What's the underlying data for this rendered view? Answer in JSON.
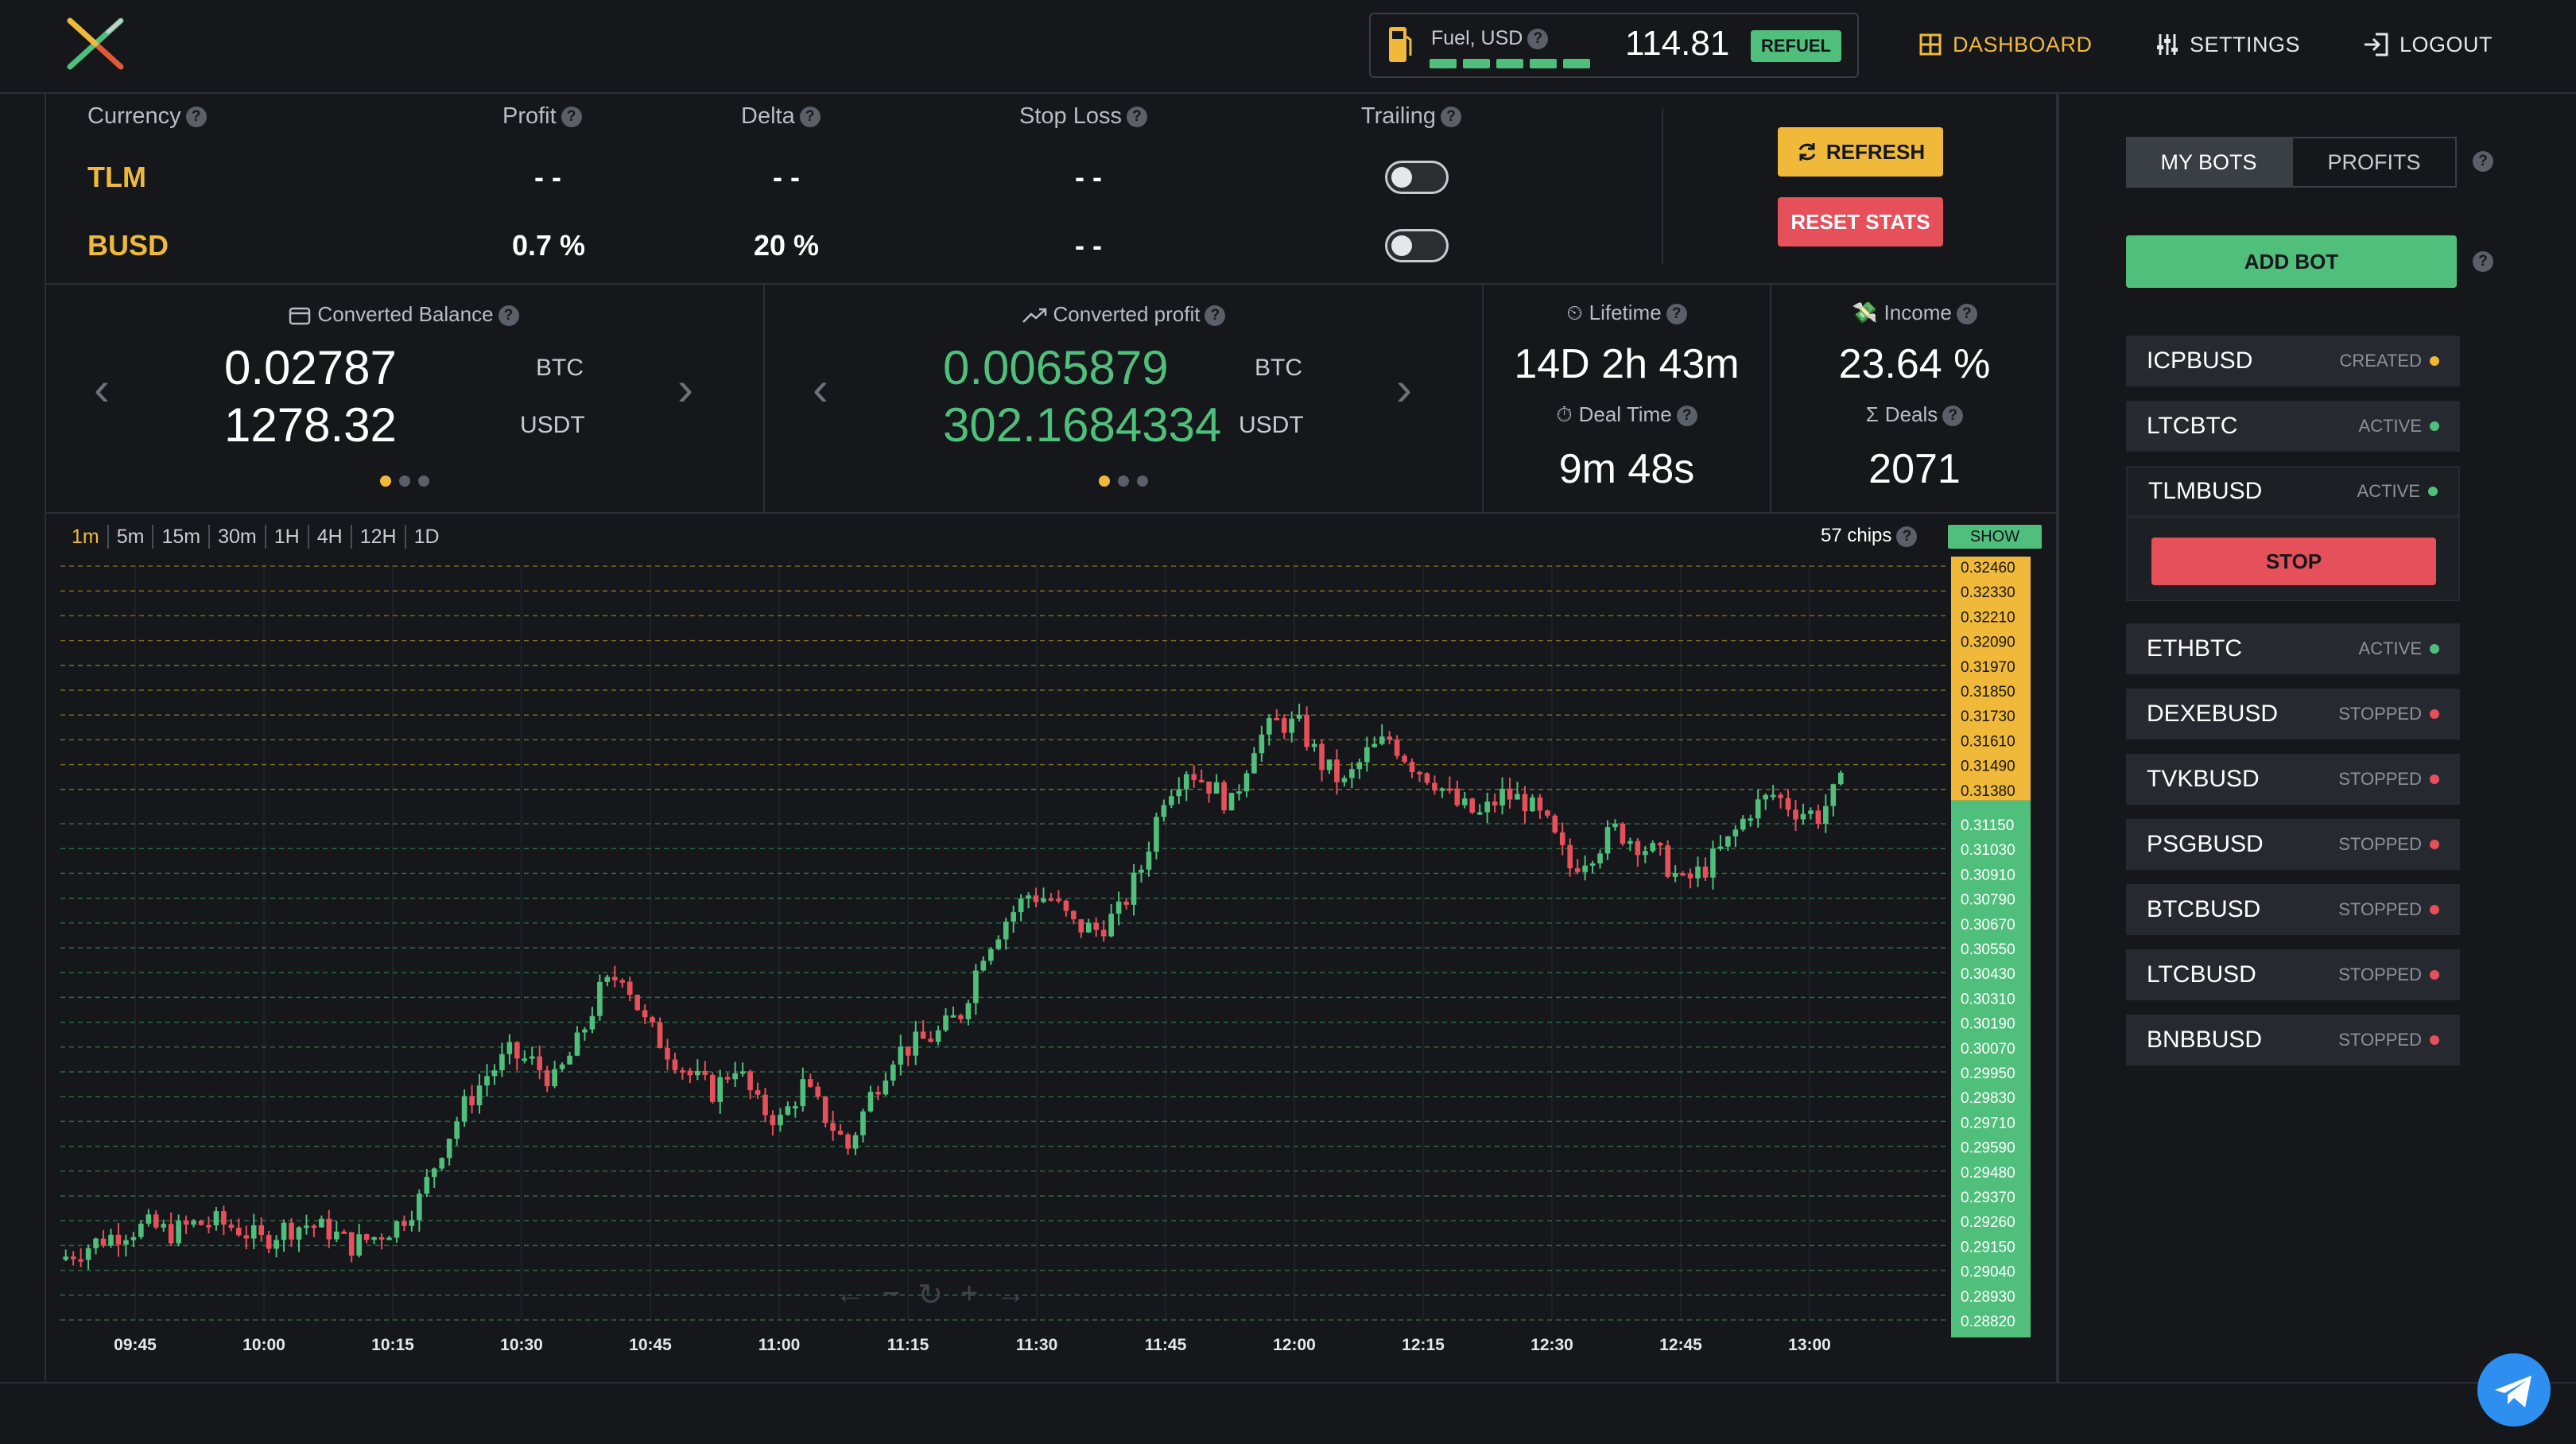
{
  "header": {
    "fuel_label": "Fuel, USD",
    "fuel_value": "114.81",
    "refuel_label": "REFUEL",
    "nav": [
      {
        "label": "DASHBOARD",
        "active": true
      },
      {
        "label": "SETTINGS",
        "active": false
      },
      {
        "label": "LOGOUT",
        "active": false
      }
    ]
  },
  "stats_table": {
    "headers": [
      "Currency",
      "Profit",
      "Delta",
      "Stop Loss",
      "Trailing"
    ],
    "rows": [
      {
        "currency": "TLM",
        "profit": "- -",
        "delta": "- -",
        "stop_loss": "- -",
        "trailing": false
      },
      {
        "currency": "BUSD",
        "profit": "0.7 %",
        "delta": "20 %",
        "stop_loss": "- -",
        "trailing": false
      }
    ],
    "refresh_label": "REFRESH",
    "reset_label": "RESET STATS"
  },
  "cards": {
    "balance": {
      "label": "Converted Balance",
      "value1": "0.02787",
      "unit1": "BTC",
      "value2": "1278.32",
      "unit2": "USDT"
    },
    "profit": {
      "label": "Converted profit",
      "value1": "0.0065879",
      "unit1": "BTC",
      "value2": "302.1684334",
      "unit2": "USDT"
    },
    "lifetime": {
      "label": "Lifetime",
      "value": "14D 2h 43m",
      "deal_time_label": "Deal Time",
      "deal_time_value": "9m 48s"
    },
    "income": {
      "label": "Income",
      "value": "23.64 %",
      "deals_label": "Deals",
      "deals_value": "2071"
    }
  },
  "chart_toolbar": {
    "timeframes": [
      "1m",
      "5m",
      "15m",
      "30m",
      "1H",
      "4H",
      "12H",
      "1D"
    ],
    "active_timeframe": "1m",
    "chips_label": "57 chips",
    "show_label": "SHOW"
  },
  "chart_data": {
    "type": "candlestick",
    "x_ticks": [
      "09:45",
      "10:00",
      "10:15",
      "10:30",
      "10:45",
      "11:00",
      "11:15",
      "11:30",
      "11:45",
      "12:00",
      "12:15",
      "12:30",
      "12:45",
      "13:00"
    ],
    "y_ticks_sell": [
      "0.32460",
      "0.32330",
      "0.32210",
      "0.32090",
      "0.31970",
      "0.31850",
      "0.31730",
      "0.31610",
      "0.31490",
      "0.31380"
    ],
    "y_ticks_buy": [
      "0.31150",
      "0.31030",
      "0.30910",
      "0.30790",
      "0.30670",
      "0.30550",
      "0.30430",
      "0.30310",
      "0.30190",
      "0.30070",
      "0.29950",
      "0.29830",
      "0.29710",
      "0.29590",
      "0.29480",
      "0.29370",
      "0.29260",
      "0.29150",
      "0.29040",
      "0.28930",
      "0.28820"
    ],
    "ylim": [
      0.2882,
      0.3246
    ],
    "close_path": [
      0.2911,
      0.2916,
      0.2921,
      0.2925,
      0.2927,
      0.2924,
      0.2928,
      0.2929,
      0.2926,
      0.292,
      0.2926,
      0.2928,
      0.2925,
      0.2918,
      0.2922,
      0.2928,
      0.294,
      0.2965,
      0.2985,
      0.3,
      0.301,
      0.3006,
      0.2997,
      0.3015,
      0.304,
      0.305,
      0.3025,
      0.3012,
      0.3,
      0.2992,
      0.3005,
      0.2985,
      0.2978,
      0.2995,
      0.298,
      0.2965,
      0.299,
      0.301,
      0.3015,
      0.302,
      0.303,
      0.306,
      0.3075,
      0.3087,
      0.3085,
      0.3072,
      0.307,
      0.3078,
      0.31,
      0.3135,
      0.3148,
      0.314,
      0.313,
      0.316,
      0.317,
      0.3168,
      0.315,
      0.314,
      0.3155,
      0.3162,
      0.315,
      0.3142,
      0.313,
      0.3125,
      0.3135,
      0.3132,
      0.312,
      0.31,
      0.3108,
      0.3118,
      0.3112,
      0.3105,
      0.3092,
      0.31,
      0.3112,
      0.3128,
      0.3135,
      0.3128,
      0.3125,
      0.314
    ]
  },
  "sidebar": {
    "tabs": [
      "MY BOTS",
      "PROFITS"
    ],
    "active_tab": "MY BOTS",
    "add_bot_label": "ADD BOT",
    "stop_label": "STOP",
    "bots": [
      {
        "name": "ICPBUSD",
        "status": "CREATED",
        "color": "#f0b93a"
      },
      {
        "name": "LTCBTC",
        "status": "ACTIVE",
        "color": "#4fbf7b"
      },
      {
        "name": "TLMBUSD",
        "status": "ACTIVE",
        "color": "#4fbf7b"
      },
      {
        "name": "ETHBTC",
        "status": "ACTIVE",
        "color": "#4fbf7b"
      },
      {
        "name": "DEXEBUSD",
        "status": "STOPPED",
        "color": "#e5505b"
      },
      {
        "name": "TVKBUSD",
        "status": "STOPPED",
        "color": "#e5505b"
      },
      {
        "name": "PSGBUSD",
        "status": "STOPPED",
        "color": "#e5505b"
      },
      {
        "name": "BTCBUSD",
        "status": "STOPPED",
        "color": "#e5505b"
      },
      {
        "name": "LTCBUSD",
        "status": "STOPPED",
        "color": "#e5505b"
      },
      {
        "name": "BNBBUSD",
        "status": "STOPPED",
        "color": "#e5505b"
      }
    ]
  },
  "colors": {
    "accent": "#f0b93a",
    "green": "#4fbf7b",
    "red": "#e5505b",
    "bg": "#15171b"
  }
}
